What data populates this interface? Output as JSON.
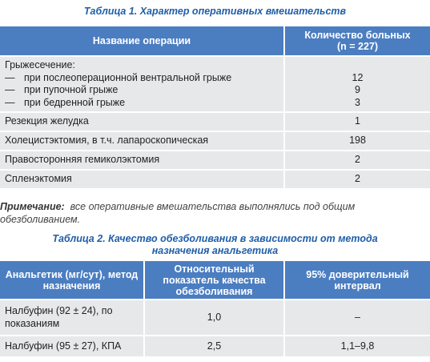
{
  "table1": {
    "title": "Таблица 1.  Характер оперативных вмешательств",
    "headers": [
      "Название операции",
      "Количество больных",
      "(n = 227)"
    ],
    "rows": [
      {
        "label": "Грыжесечение:",
        "items": [
          {
            "marker": "—",
            "label": "при послеоперационной вентральной грыже",
            "value": "12"
          },
          {
            "marker": "—",
            "label": "при пупочной грыже",
            "value": "9"
          },
          {
            "marker": "—",
            "label": "при бедренной грыже",
            "value": "3"
          }
        ]
      },
      {
        "label": "Резекция желудка",
        "value": "1"
      },
      {
        "label": "Холецистэктомия, в т.ч. лапароскопическая",
        "value": "198"
      },
      {
        "label": "Правосторонняя гемиколэктомия",
        "value": "2"
      },
      {
        "label": "Спленэктомия",
        "value": "2"
      }
    ]
  },
  "note": {
    "label": "Примечание:",
    "text": "все оперативные вмешательства выполнялись под общим обезболиванием."
  },
  "table2": {
    "title": "Таблица 2.  Качество обезболивания в зависимости от метода назначения анальгетика",
    "headers": [
      "Анальгетик (мг/сут), метод назначения",
      "Относительный показатель качества обезболивания",
      "95% доверительный интервал"
    ],
    "rows": [
      [
        "Налбуфин (92 ± 24), по показаниям",
        "1,0",
        "–"
      ],
      [
        "Налбуфин (95 ± 27), КПА",
        "2,5",
        "1,1–9,8"
      ]
    ]
  }
}
